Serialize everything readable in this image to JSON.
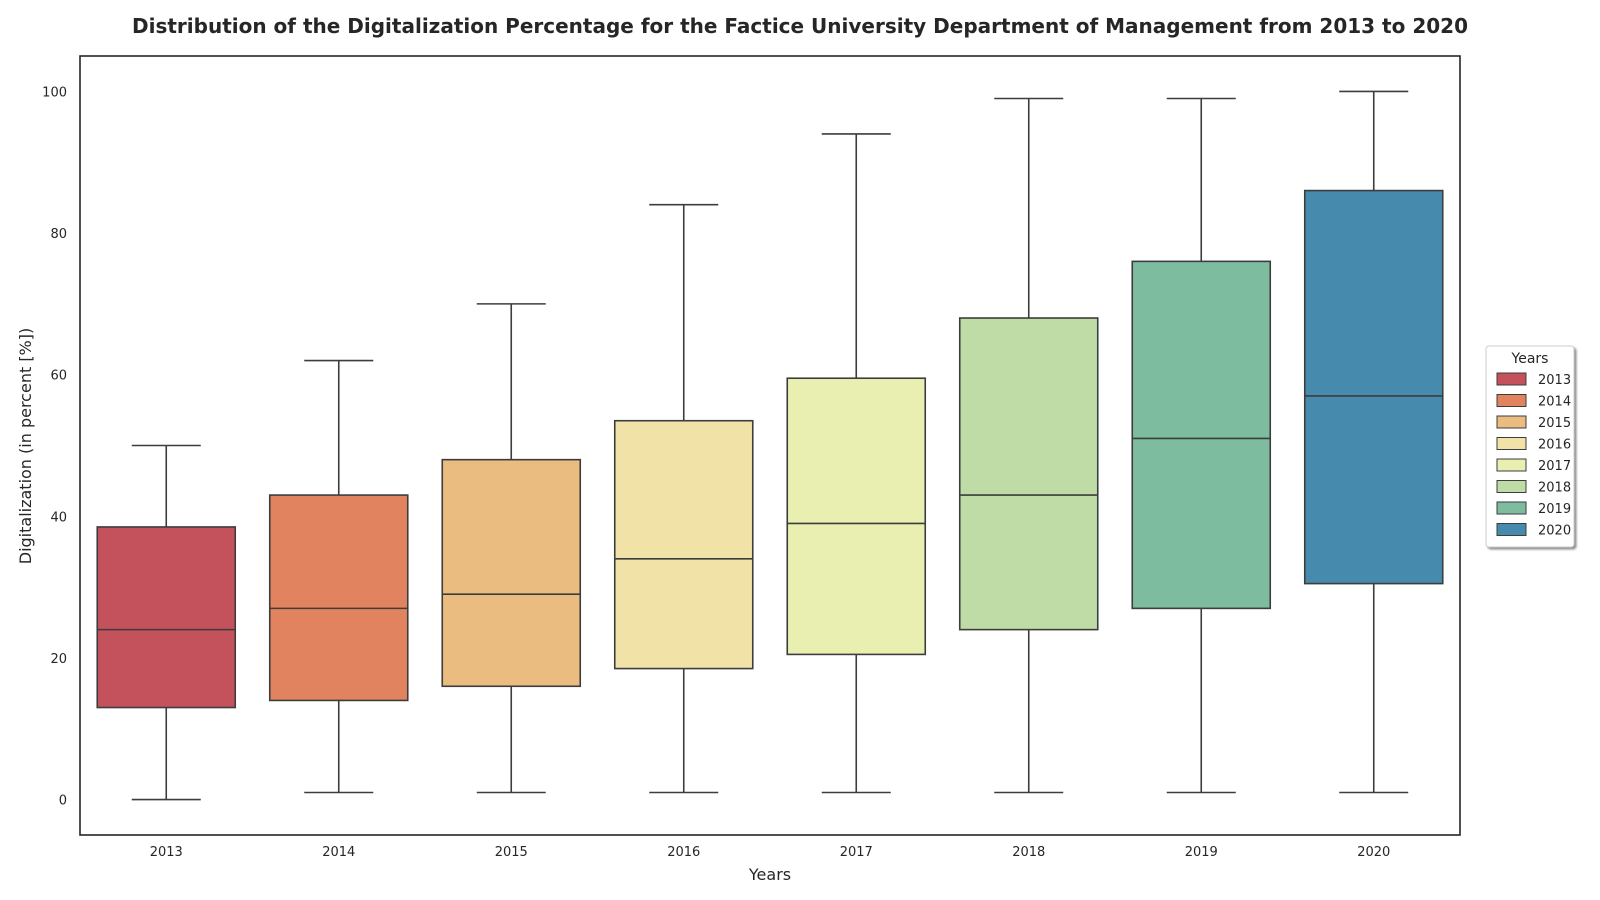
{
  "chart_data": {
    "type": "boxplot",
    "title": "Distribution of the Digitalization Percentage for the Factice University Department of Management from 2013 to 2020",
    "xlabel": "Years",
    "ylabel": "Digitalization (in percent [%])",
    "ylim": [
      -5,
      105
    ],
    "yticks": [
      0,
      20,
      40,
      60,
      80,
      100
    ],
    "grid": false,
    "legend": {
      "title": "Years",
      "placement": "center-right"
    },
    "categories": [
      "2013",
      "2014",
      "2015",
      "2016",
      "2017",
      "2018",
      "2019",
      "2020"
    ],
    "series": [
      {
        "category": "2013",
        "whisker_low": 0,
        "q1": 13,
        "median": 24,
        "q3": 38.5,
        "whisker_high": 50,
        "color": "#c4525c"
      },
      {
        "category": "2014",
        "whisker_low": 1,
        "q1": 14,
        "median": 27,
        "q3": 43,
        "whisker_high": 62,
        "color": "#e1835e"
      },
      {
        "category": "2015",
        "whisker_low": 1,
        "q1": 16,
        "median": 29,
        "q3": 48,
        "whisker_high": 70,
        "color": "#ebbc80"
      },
      {
        "category": "2016",
        "whisker_low": 1,
        "q1": 18.5,
        "median": 34,
        "q3": 53.5,
        "whisker_high": 84,
        "color": "#f1e3a8"
      },
      {
        "category": "2017",
        "whisker_low": 1,
        "q1": 20.5,
        "median": 39,
        "q3": 59.5,
        "whisker_high": 94,
        "color": "#e9efb0"
      },
      {
        "category": "2018",
        "whisker_low": 1,
        "q1": 24,
        "median": 43,
        "q3": 68,
        "whisker_high": 99,
        "color": "#c0dca6"
      },
      {
        "category": "2019",
        "whisker_low": 1,
        "q1": 27,
        "median": 51,
        "q3": 76,
        "whisker_high": 99,
        "color": "#7ebca0"
      },
      {
        "category": "2020",
        "whisker_low": 1,
        "q1": 30.5,
        "median": 57,
        "q3": 86,
        "whisker_high": 100,
        "color": "#468aad"
      }
    ]
  }
}
